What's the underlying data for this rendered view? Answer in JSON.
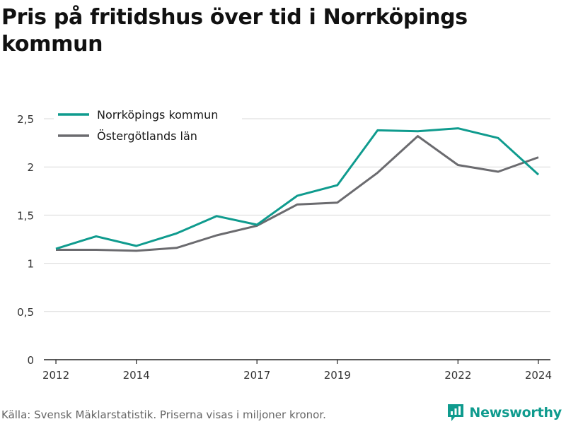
{
  "title": "Pris på fritidshus över tid i Norrköpings kommun",
  "footer": "Källa: Svensk Mäklarstatistik. Priserna visas i miljoner kronor.",
  "brand": "Newsworthy",
  "colors": {
    "primary": "#0f9b8e",
    "secondary": "#6b6b6f",
    "grid": "#d9d9d9",
    "axis": "#222222",
    "brand": "#0f9b8e"
  },
  "chart_data": {
    "type": "line",
    "title": "Pris på fritidshus över tid i Norrköpings kommun",
    "xlabel": "",
    "ylabel": "",
    "xlim": [
      2011.7,
      2024.3
    ],
    "ylim": [
      0,
      2.5
    ],
    "x_ticks": [
      2012,
      2014,
      2017,
      2019,
      2022,
      2024
    ],
    "x_tick_labels": [
      "2012",
      "2014",
      "2017",
      "2019",
      "2022",
      "2024"
    ],
    "y_ticks": [
      0,
      0.5,
      1,
      1.5,
      2,
      2.5
    ],
    "y_tick_labels": [
      "0",
      "0,5",
      "1",
      "1,5",
      "2",
      "2,5"
    ],
    "grid": true,
    "legend_position": "top-left",
    "series": [
      {
        "name": "Norrköpings kommun",
        "color": "#0f9b8e",
        "x": [
          2012,
          2013,
          2014,
          2015,
          2016,
          2017,
          2018,
          2019,
          2020,
          2021,
          2022,
          2023,
          2024
        ],
        "values": [
          1.15,
          1.28,
          1.18,
          1.31,
          1.49,
          1.4,
          1.7,
          1.81,
          2.38,
          2.37,
          2.4,
          2.3,
          1.92
        ]
      },
      {
        "name": "Östergötlands län",
        "color": "#6b6b6f",
        "x": [
          2012,
          2013,
          2014,
          2015,
          2016,
          2017,
          2018,
          2019,
          2020,
          2021,
          2022,
          2023,
          2024
        ],
        "values": [
          1.14,
          1.14,
          1.13,
          1.16,
          1.29,
          1.39,
          1.61,
          1.63,
          1.94,
          2.32,
          2.02,
          1.95,
          2.1
        ]
      }
    ]
  }
}
